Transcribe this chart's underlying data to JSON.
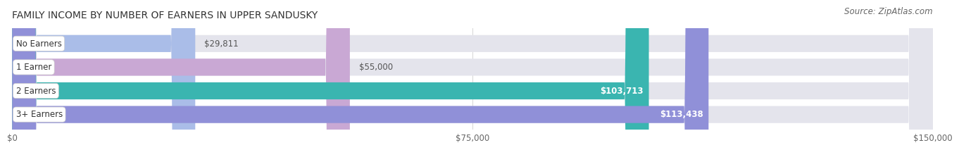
{
  "title": "FAMILY INCOME BY NUMBER OF EARNERS IN UPPER SANDUSKY",
  "source": "Source: ZipAtlas.com",
  "categories": [
    "No Earners",
    "1 Earner",
    "2 Earners",
    "3+ Earners"
  ],
  "values": [
    29811,
    55000,
    103713,
    113438
  ],
  "labels": [
    "$29,811",
    "$55,000",
    "$103,713",
    "$113,438"
  ],
  "bar_colors": [
    "#aabde8",
    "#c9a8d4",
    "#3ab5b0",
    "#9090d8"
  ],
  "label_colors": [
    "#555555",
    "#555555",
    "#ffffff",
    "#ffffff"
  ],
  "x_max": 150000,
  "x_ticks": [
    0,
    75000,
    150000
  ],
  "x_tick_labels": [
    "$0",
    "$75,000",
    "$150,000"
  ],
  "bg_color": "#ffffff",
  "bar_bg_color": "#e4e4ec",
  "title_fontsize": 10,
  "source_fontsize": 8.5,
  "tick_fontsize": 8.5,
  "label_fontsize": 8.5,
  "cat_fontsize": 8.5
}
